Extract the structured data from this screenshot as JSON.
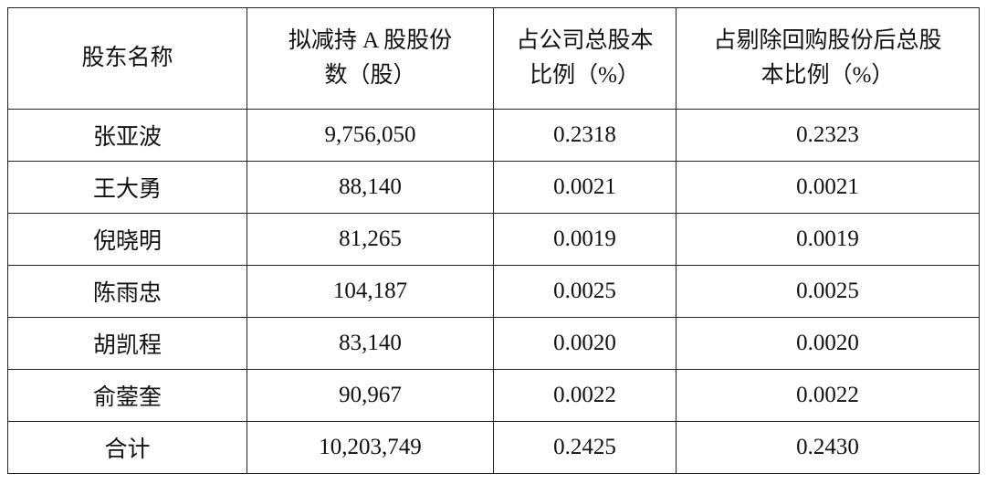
{
  "table": {
    "header": [
      [
        "股东名称"
      ],
      [
        "拟减持 A 股股份",
        "数（股）"
      ],
      [
        "占公司总股本",
        "比例（%）"
      ],
      [
        "占剔除回购股份后总股",
        "本比例（%）"
      ]
    ],
    "rows": [
      [
        "张亚波",
        "9,756,050",
        "0.2318",
        "0.2323"
      ],
      [
        "王大勇",
        "88,140",
        "0.0021",
        "0.0021"
      ],
      [
        "倪晓明",
        "81,265",
        "0.0019",
        "0.0019"
      ],
      [
        "陈雨忠",
        "104,187",
        "0.0025",
        "0.0025"
      ],
      [
        "胡凯程",
        "83,140",
        "0.0020",
        "0.0020"
      ],
      [
        "俞蓥奎",
        "90,967",
        "0.0022",
        "0.0022"
      ],
      [
        "合计",
        "10,203,749",
        "0.2425",
        "0.2430"
      ]
    ]
  }
}
